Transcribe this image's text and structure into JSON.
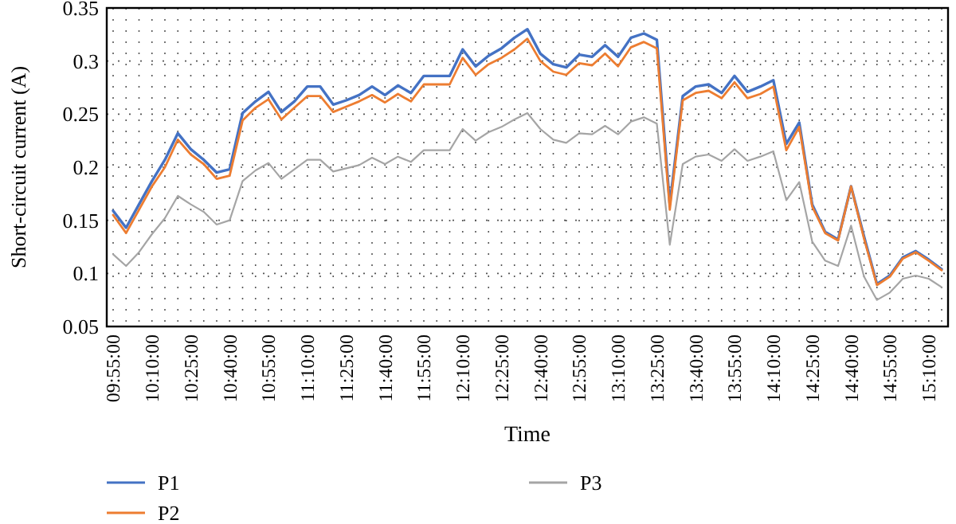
{
  "chart_data": {
    "type": "line",
    "xlabel": "Time",
    "ylabel": "Short-circuit current (A)",
    "categories": [
      "09:55:00",
      null,
      null,
      "10:10:00",
      null,
      null,
      "10:25:00",
      null,
      null,
      "10:40:00",
      null,
      null,
      "10:55:00",
      null,
      null,
      "11:10:00",
      null,
      null,
      "11:25:00",
      null,
      null,
      "11:40:00",
      null,
      null,
      "11:55:00",
      null,
      null,
      "12:10:00",
      null,
      null,
      "12:25:00",
      null,
      null,
      "12:40:00",
      null,
      null,
      "12:55:00",
      null,
      null,
      "13:10:00",
      null,
      null,
      "13:25:00",
      null,
      null,
      "13:40:00",
      null,
      null,
      "13:55:00",
      null,
      null,
      "14:10:00",
      null,
      null,
      "14:25:00",
      null,
      null,
      "14:40:00",
      null,
      null,
      "14:55:00",
      null,
      null,
      "15:10:00",
      null
    ],
    "ylim": [
      0.05,
      0.35
    ],
    "yticks": [
      0.05,
      0.1,
      0.15,
      0.2,
      0.25,
      0.3,
      0.35
    ],
    "grid": true,
    "legend": "bottom",
    "line_style": "solid",
    "marker": "none",
    "series": [
      {
        "name": "P1",
        "color": "#4472c4",
        "values": [
          0.159,
          0.143,
          0.165,
          0.187,
          0.207,
          0.232,
          0.217,
          0.207,
          0.195,
          0.198,
          0.251,
          0.262,
          0.271,
          0.252,
          0.262,
          0.276,
          0.276,
          0.259,
          0.263,
          0.268,
          0.276,
          0.268,
          0.277,
          0.27,
          0.286,
          0.286,
          0.286,
          0.311,
          0.295,
          0.305,
          0.312,
          0.322,
          0.33,
          0.307,
          0.297,
          0.294,
          0.306,
          0.304,
          0.315,
          0.304,
          0.322,
          0.326,
          0.32,
          0.165,
          0.267,
          0.276,
          0.278,
          0.27,
          0.286,
          0.271,
          0.276,
          0.282,
          0.222,
          0.242,
          0.165,
          0.139,
          0.132,
          0.182,
          0.135,
          0.09,
          0.098,
          0.115,
          0.121,
          0.113,
          0.104
        ]
      },
      {
        "name": "P2",
        "color": "#ed7d31",
        "values": [
          0.155,
          0.138,
          0.16,
          0.182,
          0.2,
          0.226,
          0.212,
          0.203,
          0.189,
          0.192,
          0.244,
          0.256,
          0.264,
          0.245,
          0.256,
          0.267,
          0.267,
          0.252,
          0.257,
          0.262,
          0.268,
          0.261,
          0.269,
          0.262,
          0.278,
          0.278,
          0.278,
          0.303,
          0.287,
          0.297,
          0.303,
          0.311,
          0.321,
          0.3,
          0.29,
          0.287,
          0.298,
          0.296,
          0.307,
          0.295,
          0.313,
          0.318,
          0.312,
          0.16,
          0.263,
          0.27,
          0.272,
          0.265,
          0.28,
          0.265,
          0.269,
          0.276,
          0.216,
          0.238,
          0.163,
          0.138,
          0.131,
          0.182,
          0.133,
          0.089,
          0.097,
          0.114,
          0.12,
          0.112,
          0.103
        ]
      },
      {
        "name": "P3",
        "color": "#a5a5a5",
        "values": [
          0.118,
          0.107,
          0.12,
          0.137,
          0.152,
          0.173,
          0.165,
          0.158,
          0.146,
          0.15,
          0.187,
          0.197,
          0.204,
          0.189,
          0.198,
          0.207,
          0.207,
          0.196,
          0.199,
          0.202,
          0.209,
          0.203,
          0.21,
          0.205,
          0.216,
          0.216,
          0.216,
          0.236,
          0.225,
          0.233,
          0.238,
          0.245,
          0.251,
          0.236,
          0.226,
          0.223,
          0.232,
          0.231,
          0.239,
          0.231,
          0.243,
          0.247,
          0.241,
          0.127,
          0.203,
          0.21,
          0.212,
          0.206,
          0.217,
          0.206,
          0.21,
          0.215,
          0.169,
          0.186,
          0.13,
          0.112,
          0.107,
          0.145,
          0.097,
          0.075,
          0.082,
          0.095,
          0.098,
          0.095,
          0.087
        ]
      }
    ]
  }
}
